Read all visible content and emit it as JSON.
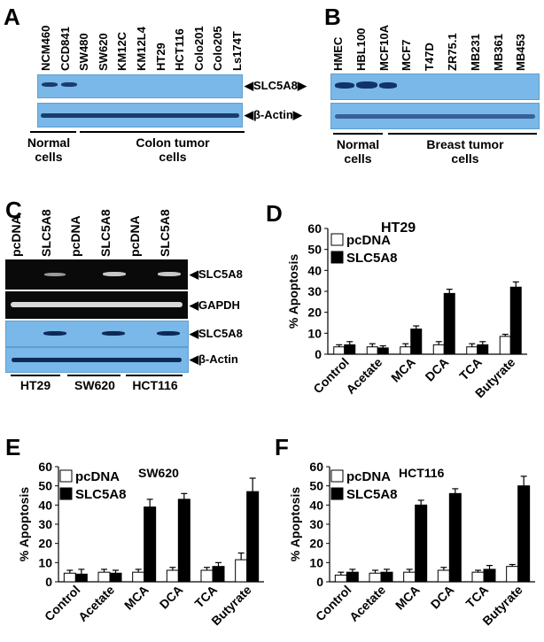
{
  "panelA": {
    "label": "A",
    "lanes": [
      "NCM460",
      "CCD841",
      "SW480",
      "SW620",
      "KM12C",
      "KM12L4",
      "HT29",
      "HCT116",
      "Colo201",
      "Colo205",
      "Ls174T"
    ],
    "row1": "SLC5A8",
    "row2": "β-Actin",
    "group1_line1": "Normal",
    "group1_line2": "cells",
    "group2_line1": "Colon tumor",
    "group2_line2": "cells"
  },
  "panelB": {
    "label": "B",
    "lanes": [
      "HMEC",
      "HBL100",
      "MCF10A",
      "MCF7",
      "T47D",
      "ZR75.1",
      "MB231",
      "MB361",
      "MB453"
    ],
    "group1_line1": "Normal",
    "group1_line2": "cells",
    "group2_line1": "Breast tumor",
    "group2_line2": "cells"
  },
  "panelC": {
    "label": "C",
    "lanes": [
      "pcDNA",
      "SLC5A8",
      "pcDNA",
      "SLC5A8",
      "pcDNA",
      "SLC5A8"
    ],
    "rows": [
      "SLC5A8",
      "GAPDH",
      "SLC5A8",
      "β-Actin"
    ],
    "cells": [
      "HT29",
      "SW620",
      "HCT116"
    ]
  },
  "chart_data": [
    {
      "panel": "D",
      "type": "bar",
      "title": "HT29",
      "ylabel": "% Apoptosis",
      "ylim": [
        0,
        60
      ],
      "yticks": [
        0,
        10,
        20,
        30,
        40,
        50,
        60
      ],
      "categories": [
        "Control",
        "Acetate",
        "MCA",
        "DCA",
        "TCA",
        "Butyrate"
      ],
      "series": [
        {
          "name": "pcDNA",
          "color": "#ffffff",
          "values": [
            3.5,
            3.5,
            3.5,
            4.5,
            3.5,
            8.5
          ],
          "errors": [
            1,
            1.5,
            1.5,
            1.5,
            1.5,
            1
          ]
        },
        {
          "name": "SLC5A8",
          "color": "#000000",
          "values": [
            4.5,
            3,
            12,
            29,
            4.5,
            32
          ],
          "errors": [
            1.5,
            1,
            1.5,
            2,
            1.5,
            2.5
          ]
        }
      ]
    },
    {
      "panel": "E",
      "type": "bar",
      "title": "SW620",
      "ylabel": "% Apoptosis",
      "ylim": [
        0,
        60
      ],
      "yticks": [
        0,
        10,
        20,
        30,
        40,
        50,
        60
      ],
      "categories": [
        "Control",
        "Acetate",
        "MCA",
        "DCA",
        "TCA",
        "Butyrate"
      ],
      "series": [
        {
          "name": "pcDNA",
          "color": "#ffffff",
          "values": [
            4.5,
            5,
            5,
            6,
            6,
            11.5
          ],
          "errors": [
            1.5,
            1.5,
            1.5,
            1.5,
            1.5,
            3.5
          ]
        },
        {
          "name": "SLC5A8",
          "color": "#000000",
          "values": [
            4,
            4.5,
            39,
            43,
            8,
            47
          ],
          "errors": [
            2.5,
            1.5,
            4,
            3,
            2,
            7
          ]
        }
      ]
    },
    {
      "panel": "F",
      "type": "bar",
      "title": "HCT116",
      "ylabel": "% Apoptosis",
      "ylim": [
        0,
        60
      ],
      "yticks": [
        0,
        10,
        20,
        30,
        40,
        50,
        60
      ],
      "categories": [
        "Control",
        "Acetate",
        "MCA",
        "DCA",
        "TCA",
        "Butyrate"
      ],
      "series": [
        {
          "name": "pcDNA",
          "color": "#ffffff",
          "values": [
            3.5,
            4.5,
            5,
            6,
            5,
            8
          ],
          "errors": [
            1.5,
            1.5,
            1.5,
            1.5,
            1,
            1
          ]
        },
        {
          "name": "SLC5A8",
          "color": "#000000",
          "values": [
            5,
            5,
            40,
            46,
            6.5,
            50
          ],
          "errors": [
            1.5,
            1.5,
            2.5,
            2.5,
            2,
            5
          ]
        }
      ]
    }
  ]
}
